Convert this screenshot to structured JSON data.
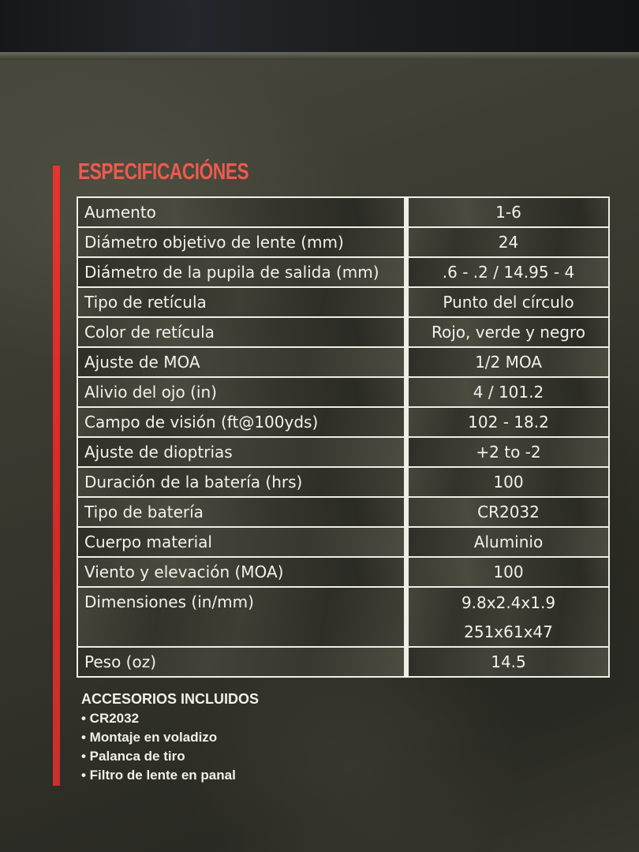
{
  "title": "ESPECIFICACIÓNES",
  "specs": [
    {
      "label": "Aumento",
      "value": "1-6"
    },
    {
      "label": "Diámetro objetivo de lente (mm)",
      "value": "24"
    },
    {
      "label": "Diámetro de la pupila de salida (mm)",
      "value": ".6 - .2 / 14.95 - 4"
    },
    {
      "label": "Tipo de retícula",
      "value": "Punto del círculo"
    },
    {
      "label": "Color de retícula",
      "value": "Rojo, verde y negro"
    },
    {
      "label": "Ajuste de MOA",
      "value": "1/2 MOA"
    },
    {
      "label": "Alivio del ojo (in)",
      "value": "4 / 101.2"
    },
    {
      "label": "Campo de visión (ft@100yds)",
      "value": "102 - 18.2"
    },
    {
      "label": "Ajuste de dioptrias",
      "value": "+2 to -2"
    },
    {
      "label": "Duración de la batería (hrs)",
      "value": "100"
    },
    {
      "label": "Tipo de batería",
      "value": "CR2032"
    },
    {
      "label": "Cuerpo material",
      "value": "Aluminio"
    },
    {
      "label": "Viento y elevación (MOA)",
      "value": "100"
    },
    {
      "label": "Dimensiones (in/mm)",
      "value": "9.8x2.4x1.9",
      "value2": "251x61x47"
    },
    {
      "label": "Peso (oz)",
      "value": "14.5"
    }
  ],
  "accessories": {
    "heading": "ACCESORIOS INCLUIDOS",
    "items": [
      "• CR2032",
      "• Montaje en voladizo",
      "• Palanca de tiro",
      "• Filtro de lente en panal"
    ]
  },
  "colors": {
    "accent": "#e0302c",
    "title": "#ef5a4e",
    "background": "#3a3a32"
  }
}
